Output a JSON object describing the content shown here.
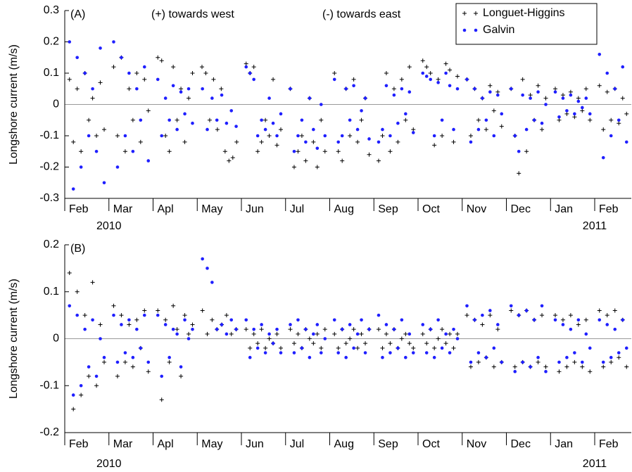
{
  "chart_data": [
    {
      "type": "scatter",
      "panel_label": "(A)",
      "ylabel": "Longshore current (m/s)",
      "annotations": [
        "(+) towards west",
        "(-) towards east"
      ],
      "categories": [
        "Feb",
        "Mar",
        "Apl",
        "May",
        "Jun",
        "Jul",
        "Aug",
        "Sep",
        "Oct",
        "Nov",
        "Dec",
        "Jan",
        "Feb"
      ],
      "year_labels": [
        "2010",
        "2011"
      ],
      "ylim": [
        -0.3,
        0.3
      ],
      "yticks": [
        -0.3,
        -0.2,
        -0.1,
        0,
        0.1,
        0.2,
        0.3
      ],
      "grid": false,
      "legend": "upper right",
      "series": [
        {
          "name": "Longuet-Higgins",
          "color": "#000000",
          "marker": "+",
          "values": [
            [
              0.08,
              -0.12,
              0.05,
              -0.15,
              0.1,
              -0.05,
              0.02,
              -0.1,
              0.07,
              -0.08
            ],
            [
              0.12,
              -0.1,
              0.15,
              -0.15,
              0.05,
              -0.05,
              0.1,
              -0.12,
              0.08,
              -0.02
            ],
            [
              0.15,
              0.14,
              -0.1,
              -0.15,
              0.12,
              -0.05,
              0.05,
              -0.12,
              0.02,
              0.1
            ],
            [
              0.12,
              0.1,
              -0.05,
              0.08,
              -0.08,
              0.05,
              -0.15,
              -0.18,
              -0.17,
              -0.12
            ],
            [
              0.13,
              0.1,
              0.12,
              -0.15,
              -0.12,
              -0.05,
              -0.1,
              0.08,
              -0.13,
              -0.08
            ],
            [
              0.05,
              -0.2,
              -0.15,
              -0.1,
              -0.18,
              0.02,
              -0.12,
              -0.2,
              -0.05,
              -0.15
            ],
            [
              0.1,
              -0.15,
              -0.18,
              0.05,
              -0.1,
              0.08,
              -0.12,
              -0.05,
              0.02,
              -0.16
            ],
            [
              -0.18,
              -0.1,
              0.1,
              -0.15,
              0.05,
              -0.12,
              0.08,
              -0.05,
              0.12,
              -0.08
            ],
            [
              0.14,
              0.12,
              0.1,
              -0.13,
              0.08,
              -0.1,
              0.13,
              0.11,
              -0.12,
              0.09
            ],
            [
              0.08,
              -0.1,
              0.05,
              -0.05,
              0.02,
              -0.08,
              0.06,
              -0.02,
              0.04,
              -0.07
            ],
            [
              0.05,
              -0.1,
              -0.22,
              0.08,
              -0.15,
              0.03,
              -0.05,
              0.06,
              -0.08,
              0.02
            ],
            [
              0.05,
              -0.05,
              0.03,
              -0.03,
              0.04,
              -0.04,
              0.02,
              -0.02,
              0.05,
              -0.05
            ],
            [
              0.06,
              -0.08,
              0.04,
              -0.05,
              0.05,
              -0.06,
              0.02,
              -0.03
            ]
          ]
        },
        {
          "name": "Galvin",
          "color": "#1f1fff",
          "marker": "o",
          "values": [
            [
              0.2,
              -0.27,
              0.15,
              -0.2,
              0.1,
              -0.1,
              0.05,
              -0.15,
              0.18,
              -0.25
            ],
            [
              0.2,
              -0.2,
              0.15,
              -0.1,
              0.1,
              -0.15,
              0.05,
              -0.05,
              0.12,
              -0.18
            ],
            [
              0.08,
              -0.1,
              0.02,
              -0.05,
              0.06,
              -0.08,
              0.04,
              -0.03,
              0.05,
              -0.06
            ],
            [
              0.05,
              -0.08,
              0.02,
              -0.05,
              0.03,
              -0.06,
              -0.02,
              -0.07
            ],
            [
              0.12,
              0.1,
              0.08,
              -0.1,
              -0.05,
              -0.08,
              0.02,
              -0.06,
              -0.1,
              -0.03
            ],
            [
              0.05,
              -0.15,
              -0.1,
              -0.05,
              -0.12,
              0.02,
              -0.08,
              -0.14,
              0,
              -0.1
            ],
            [
              0.08,
              -0.12,
              -0.1,
              0.05,
              -0.05,
              0.06,
              -0.08,
              -0.02,
              0.02,
              -0.11
            ],
            [
              -0.12,
              -0.08,
              0.06,
              -0.1,
              0.03,
              -0.06,
              0.05,
              -0.03,
              0.04,
              -0.09
            ],
            [
              0.1,
              0.09,
              0.08,
              -0.1,
              0.07,
              -0.05,
              0.1,
              0.06,
              -0.08,
              0.05
            ],
            [
              0.08,
              -0.12,
              0.05,
              -0.08,
              0.02,
              -0.05,
              0.04,
              -0.1,
              0.03,
              -0.03
            ],
            [
              0.05,
              -0.1,
              -0.15,
              0.03,
              -0.08,
              0.02,
              -0.05,
              0.04,
              -0.06,
              0
            ],
            [
              0.04,
              -0.04,
              0.02,
              -0.02,
              0.03,
              -0.03,
              0.01,
              -0.01,
              0.02,
              -0.03
            ],
            [
              0.16,
              -0.17,
              0.1,
              -0.1,
              0.05,
              -0.05,
              0.12,
              -0.12
            ]
          ]
        }
      ]
    },
    {
      "type": "scatter",
      "panel_label": "(B)",
      "ylabel": "Longshore current (m/s)",
      "categories": [
        "Feb",
        "Mar",
        "Apl",
        "May",
        "Jun",
        "Jul",
        "Aug",
        "Sep",
        "Oct",
        "Nov",
        "Dec",
        "Jan",
        "Feb"
      ],
      "year_labels": [
        "2010",
        "2011"
      ],
      "ylim": [
        -0.2,
        0.2
      ],
      "yticks": [
        -0.2,
        -0.1,
        0,
        0.1,
        0.2
      ],
      "grid": false,
      "series": [
        {
          "color": "#000000",
          "marker": "+",
          "values": [
            [
              0.14,
              -0.15,
              0.1,
              -0.12,
              0.05,
              -0.08,
              0.12,
              -0.1,
              0.03,
              -0.05
            ],
            [
              0.07,
              -0.08,
              0.05,
              -0.05,
              0.03,
              -0.06,
              0.04,
              -0.02,
              0.06,
              -0.07
            ],
            [
              0.06,
              -0.13,
              0.04,
              -0.05,
              0.07,
              0.02,
              -0.08,
              0.05,
              0.01,
              0.03
            ],
            [
              0.06,
              0.01,
              0.04,
              0.02,
              0.03,
              0.05,
              0.01,
              0.02
            ],
            [
              0.02,
              -0.02,
              0.01,
              -0.01,
              0.02,
              -0.02,
              0,
              -0.01,
              0.01,
              -0.02
            ],
            [
              0.02,
              -0.01,
              0.01,
              -0.02,
              0.02,
              0,
              -0.01,
              0.01,
              -0.02,
              0.02
            ],
            [
              0.01,
              -0.02,
              0.02,
              -0.01,
              0,
              0.02,
              -0.02,
              0.01,
              -0.01,
              0.02
            ],
            [
              0.02,
              -0.02,
              0.01,
              -0.01,
              0.02,
              -0.02,
              0,
              0.01,
              -0.01,
              -0.02
            ],
            [
              0.01,
              -0.01,
              0.02,
              -0.02,
              0,
              0.02,
              -0.01,
              0.01,
              -0.02,
              0.01
            ],
            [
              0.05,
              -0.06,
              0.04,
              -0.05,
              0.03,
              -0.04,
              0.05,
              -0.06,
              0.02,
              -0.05
            ],
            [
              0.06,
              -0.06,
              0.05,
              -0.05,
              0.06,
              -0.06,
              0.04,
              -0.05,
              0.05,
              -0.06
            ],
            [
              0.05,
              -0.07,
              0.04,
              -0.06,
              0.05,
              -0.05,
              0.03,
              -0.06,
              0.04,
              -0.07
            ],
            [
              0.06,
              -0.06,
              0.05,
              -0.05,
              0.06,
              -0.04,
              0.04,
              -0.06
            ]
          ]
        },
        {
          "color": "#1f1fff",
          "marker": "o",
          "values": [
            [
              0.07,
              -0.12,
              0.05,
              -0.1,
              0.02,
              -0.06,
              0.04,
              -0.08,
              0,
              -0.04
            ],
            [
              0.05,
              -0.05,
              0.03,
              -0.03,
              0.04,
              -0.04,
              0.02,
              -0.02,
              0.05,
              -0.05
            ],
            [
              0.05,
              -0.08,
              0.03,
              -0.04,
              0.02,
              0.01,
              -0.06,
              0.04,
              0,
              0.02
            ],
            [
              0.17,
              0.15,
              0.12,
              0.02,
              0.03,
              0.01,
              0.04,
              0.02
            ],
            [
              0.04,
              -0.04,
              0.02,
              -0.02,
              0.03,
              -0.03,
              0.01,
              -0.01,
              0.02,
              -0.03
            ],
            [
              0.03,
              -0.03,
              0.04,
              -0.02,
              0.02,
              -0.04,
              0.01,
              0.03,
              -0.03,
              0
            ],
            [
              0.04,
              -0.03,
              0.02,
              -0.04,
              0.03,
              -0.02,
              0.01,
              0.04,
              -0.03,
              0.02
            ],
            [
              0.05,
              -0.04,
              0.03,
              -0.03,
              0.02,
              -0.02,
              0.04,
              -0.04,
              0.01,
              -0.03
            ],
            [
              0.03,
              -0.03,
              0.02,
              -0.04,
              0.04,
              -0.02,
              0.01,
              -0.03,
              0.02,
              0
            ],
            [
              0.07,
              -0.05,
              0.04,
              -0.03,
              0.05,
              -0.04,
              0.06,
              -0.02,
              0.03,
              -0.05
            ],
            [
              0.07,
              -0.07,
              0.05,
              -0.05,
              0.06,
              -0.06,
              0.04,
              -0.04,
              0.07,
              -0.07
            ],
            [
              0.04,
              -0.05,
              0.03,
              -0.04,
              0.02,
              -0.03,
              0.04,
              -0.05,
              0.01,
              -0.02
            ],
            [
              0.04,
              -0.05,
              0.03,
              -0.04,
              0.02,
              -0.03,
              0.04,
              -0.02
            ]
          ]
        }
      ]
    }
  ]
}
